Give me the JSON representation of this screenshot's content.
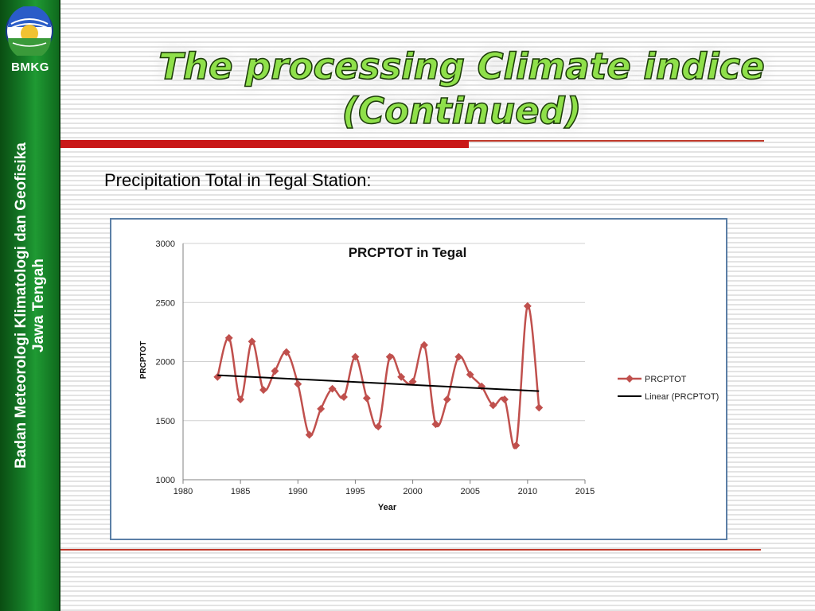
{
  "sidebar": {
    "org_short": "BMKG",
    "org_line1": "Badan Meteorologi Klimatologi dan Geofisika",
    "org_line2": "Jawa Tengah"
  },
  "slide": {
    "title_line1": "The processing Climate indice",
    "title_line2": "(Continued)",
    "subtitle": "Precipitation Total in Tegal Station:"
  },
  "colors": {
    "sidebar_green": "#17832a",
    "title_green": "#8fe04a",
    "rule_red": "#c91818",
    "series_color": "#c0504d",
    "trend_color": "#000000",
    "frame_border": "#5b7fa6"
  },
  "chart_data": {
    "type": "line",
    "title": "PRCPTOT in Tegal",
    "xlabel": "Year",
    "ylabel": "PRCPTOT",
    "xlim": [
      1980,
      2015
    ],
    "ylim": [
      1000,
      3000
    ],
    "xticks": [
      1980,
      1985,
      1990,
      1995,
      2000,
      2005,
      2010,
      2015
    ],
    "yticks": [
      1000,
      1500,
      2000,
      2500,
      3000
    ],
    "grid": "horizontal",
    "legend_position": "right",
    "series": [
      {
        "name": "PRCPTOT",
        "style": "smoothed line with diamond markers",
        "x": [
          1983,
          1984,
          1985,
          1986,
          1987,
          1988,
          1989,
          1990,
          1991,
          1992,
          1993,
          1994,
          1995,
          1996,
          1997,
          1998,
          1999,
          2000,
          2001,
          2002,
          2003,
          2004,
          2005,
          2006,
          2007,
          2008,
          2009,
          2010,
          2011
        ],
        "values": [
          1870,
          2200,
          1680,
          2170,
          1760,
          1920,
          2080,
          1810,
          1380,
          1600,
          1770,
          1700,
          2040,
          1690,
          1450,
          2040,
          1870,
          1830,
          2140,
          1470,
          1680,
          2040,
          1890,
          1790,
          1630,
          1680,
          1290,
          2470,
          1610
        ]
      },
      {
        "name": "Linear (PRCPTOT)",
        "style": "straight trend line",
        "x": [
          1983,
          2011
        ],
        "values": [
          1885,
          1750
        ]
      }
    ]
  }
}
